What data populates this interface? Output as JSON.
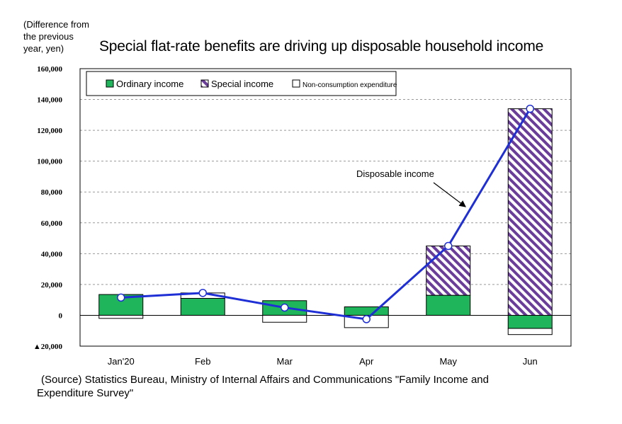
{
  "chart_data": {
    "type": "bar",
    "title": "Special flat-rate benefits are driving up disposable household income",
    "unit_label": "(Difference from\nthe previous\nyear, yen)",
    "categories": [
      "Jan'20",
      "Feb",
      "Mar",
      "Apr",
      "May",
      "Jun"
    ],
    "ylim": [
      -20000,
      160000
    ],
    "yticks": [
      {
        "value": 160000,
        "label": "160,000"
      },
      {
        "value": 140000,
        "label": "140,000"
      },
      {
        "value": 120000,
        "label": "120,000"
      },
      {
        "value": 100000,
        "label": "100,000"
      },
      {
        "value": 80000,
        "label": "80,000"
      },
      {
        "value": 60000,
        "label": "60,000"
      },
      {
        "value": 40000,
        "label": "40,000"
      },
      {
        "value": 20000,
        "label": "20,000"
      },
      {
        "value": 0,
        "label": "0"
      },
      {
        "value": -20000,
        "label": "▲20,000"
      }
    ],
    "grid": true,
    "stacked": true,
    "legend_position": "top-left",
    "series": [
      {
        "name": "Ordinary income",
        "kind": "bar",
        "color": "#1fb55a",
        "pattern": "solid",
        "values": [
          13500,
          11000,
          9500,
          5500,
          13000,
          -8500
        ]
      },
      {
        "name": "Special income",
        "kind": "bar",
        "color": "#6a3d9a",
        "pattern": "diagonal-hatch",
        "values": [
          0,
          0,
          0,
          0,
          32000,
          134000
        ]
      },
      {
        "name": "Non-consumption expenditure",
        "kind": "bar",
        "color": "#ffffff",
        "pattern": "outline",
        "values": [
          -2000,
          3500,
          -4500,
          -8000,
          0,
          -4000
        ]
      },
      {
        "name": "Disposable income",
        "kind": "line",
        "color": "#1f2fd6",
        "values": [
          11500,
          14500,
          5000,
          -2500,
          45000,
          134000
        ]
      }
    ],
    "annotation": {
      "text": "Disposable income",
      "points_to": "May-Jun segment"
    }
  },
  "source_note": {
    "line1": "(Source) Statistics Bureau, Ministry of Internal Affairs and Communications \"Family Income and",
    "line2": "Expenditure Survey\""
  }
}
